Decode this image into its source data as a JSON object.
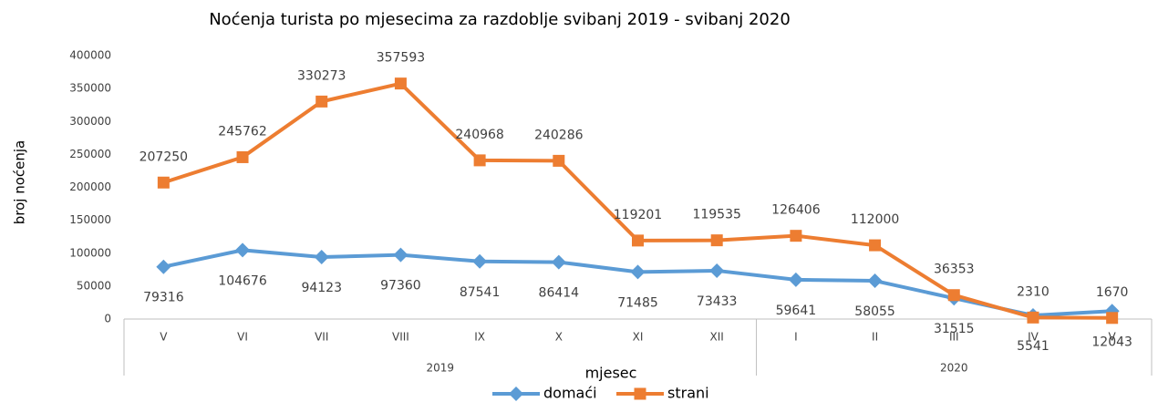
{
  "chart_data": {
    "type": "line",
    "title": "Noćenja turista po mjesecima za razdoblje  svibanj 2019 -  svibanj 2020",
    "y_label": "broj noćenja",
    "x_label": "mjesec",
    "categories": [
      "V",
      "VI",
      "VII",
      "VIII",
      "IX",
      "X",
      "XI",
      "XII",
      "I",
      "II",
      "III",
      "IV",
      "V"
    ],
    "category_groups": [
      {
        "label": "2019",
        "size": 8
      },
      {
        "label": "2020",
        "size": 5
      }
    ],
    "series": [
      {
        "name": "domaći",
        "color": "#5b9bd5",
        "marker": "diamond",
        "values": [
          79316,
          104676,
          94123,
          97360,
          87541,
          86414,
          71485,
          73433,
          59641,
          58055,
          31515,
          5541,
          12043
        ]
      },
      {
        "name": "strani",
        "color": "#ed7d31",
        "marker": "square",
        "values": [
          207250,
          245762,
          330273,
          357593,
          240968,
          240286,
          119201,
          119535,
          126406,
          112000,
          36353,
          2310,
          1670
        ]
      }
    ],
    "ylim": [
      0,
      400000
    ],
    "yticks": [
      0,
      50000,
      100000,
      150000,
      200000,
      250000,
      300000,
      350000,
      400000
    ],
    "legend": "bottom"
  }
}
